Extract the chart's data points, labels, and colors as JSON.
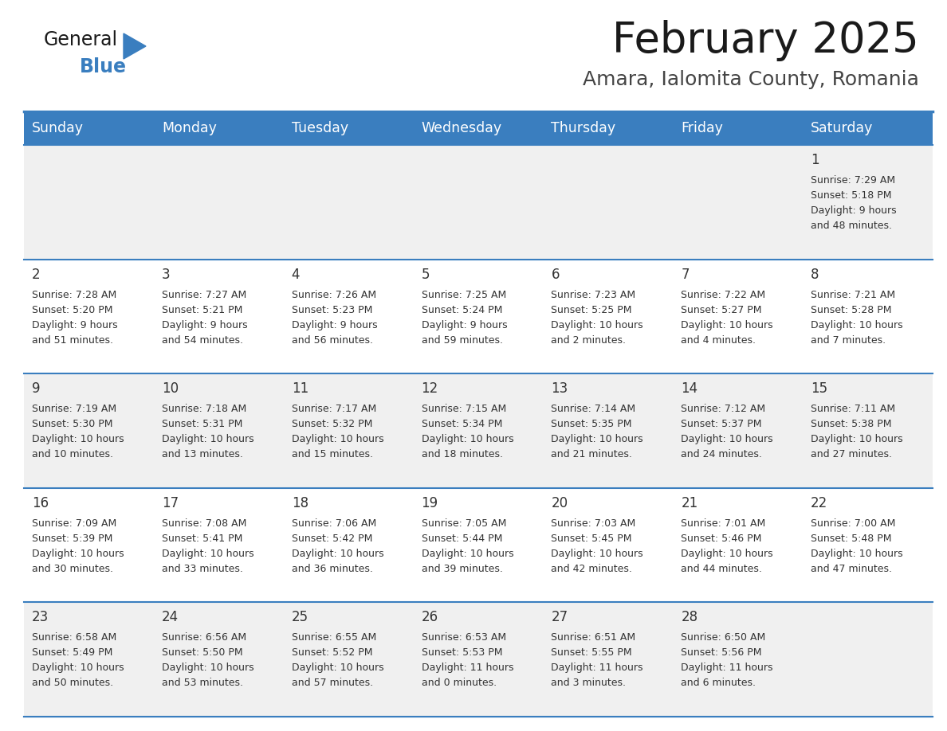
{
  "title": "February 2025",
  "subtitle": "Amara, Ialomita County, Romania",
  "days_of_week": [
    "Sunday",
    "Monday",
    "Tuesday",
    "Wednesday",
    "Thursday",
    "Friday",
    "Saturday"
  ],
  "header_bg": "#3a7ebf",
  "header_text": "#ffffff",
  "cell_bg_light": "#f0f0f0",
  "cell_bg_white": "#ffffff",
  "cell_border": "#3a7ebf",
  "day_number_color": "#333333",
  "info_text_color": "#333333",
  "title_color": "#1a1a1a",
  "subtitle_color": "#444444",
  "logo_general_color": "#1a1a1a",
  "logo_blue_color": "#3a7ebf",
  "calendar_data": [
    [
      null,
      null,
      null,
      null,
      null,
      null,
      {
        "day": 1,
        "sunrise": "7:29 AM",
        "sunset": "5:18 PM",
        "daylight": "9 hours and 48 minutes."
      }
    ],
    [
      {
        "day": 2,
        "sunrise": "7:28 AM",
        "sunset": "5:20 PM",
        "daylight": "9 hours and 51 minutes."
      },
      {
        "day": 3,
        "sunrise": "7:27 AM",
        "sunset": "5:21 PM",
        "daylight": "9 hours and 54 minutes."
      },
      {
        "day": 4,
        "sunrise": "7:26 AM",
        "sunset": "5:23 PM",
        "daylight": "9 hours and 56 minutes."
      },
      {
        "day": 5,
        "sunrise": "7:25 AM",
        "sunset": "5:24 PM",
        "daylight": "9 hours and 59 minutes."
      },
      {
        "day": 6,
        "sunrise": "7:23 AM",
        "sunset": "5:25 PM",
        "daylight": "10 hours and 2 minutes."
      },
      {
        "day": 7,
        "sunrise": "7:22 AM",
        "sunset": "5:27 PM",
        "daylight": "10 hours and 4 minutes."
      },
      {
        "day": 8,
        "sunrise": "7:21 AM",
        "sunset": "5:28 PM",
        "daylight": "10 hours and 7 minutes."
      }
    ],
    [
      {
        "day": 9,
        "sunrise": "7:19 AM",
        "sunset": "5:30 PM",
        "daylight": "10 hours and 10 minutes."
      },
      {
        "day": 10,
        "sunrise": "7:18 AM",
        "sunset": "5:31 PM",
        "daylight": "10 hours and 13 minutes."
      },
      {
        "day": 11,
        "sunrise": "7:17 AM",
        "sunset": "5:32 PM",
        "daylight": "10 hours and 15 minutes."
      },
      {
        "day": 12,
        "sunrise": "7:15 AM",
        "sunset": "5:34 PM",
        "daylight": "10 hours and 18 minutes."
      },
      {
        "day": 13,
        "sunrise": "7:14 AM",
        "sunset": "5:35 PM",
        "daylight": "10 hours and 21 minutes."
      },
      {
        "day": 14,
        "sunrise": "7:12 AM",
        "sunset": "5:37 PM",
        "daylight": "10 hours and 24 minutes."
      },
      {
        "day": 15,
        "sunrise": "7:11 AM",
        "sunset": "5:38 PM",
        "daylight": "10 hours and 27 minutes."
      }
    ],
    [
      {
        "day": 16,
        "sunrise": "7:09 AM",
        "sunset": "5:39 PM",
        "daylight": "10 hours and 30 minutes."
      },
      {
        "day": 17,
        "sunrise": "7:08 AM",
        "sunset": "5:41 PM",
        "daylight": "10 hours and 33 minutes."
      },
      {
        "day": 18,
        "sunrise": "7:06 AM",
        "sunset": "5:42 PM",
        "daylight": "10 hours and 36 minutes."
      },
      {
        "day": 19,
        "sunrise": "7:05 AM",
        "sunset": "5:44 PM",
        "daylight": "10 hours and 39 minutes."
      },
      {
        "day": 20,
        "sunrise": "7:03 AM",
        "sunset": "5:45 PM",
        "daylight": "10 hours and 42 minutes."
      },
      {
        "day": 21,
        "sunrise": "7:01 AM",
        "sunset": "5:46 PM",
        "daylight": "10 hours and 44 minutes."
      },
      {
        "day": 22,
        "sunrise": "7:00 AM",
        "sunset": "5:48 PM",
        "daylight": "10 hours and 47 minutes."
      }
    ],
    [
      {
        "day": 23,
        "sunrise": "6:58 AM",
        "sunset": "5:49 PM",
        "daylight": "10 hours and 50 minutes."
      },
      {
        "day": 24,
        "sunrise": "6:56 AM",
        "sunset": "5:50 PM",
        "daylight": "10 hours and 53 minutes."
      },
      {
        "day": 25,
        "sunrise": "6:55 AM",
        "sunset": "5:52 PM",
        "daylight": "10 hours and 57 minutes."
      },
      {
        "day": 26,
        "sunrise": "6:53 AM",
        "sunset": "5:53 PM",
        "daylight": "11 hours and 0 minutes."
      },
      {
        "day": 27,
        "sunrise": "6:51 AM",
        "sunset": "5:55 PM",
        "daylight": "11 hours and 3 minutes."
      },
      {
        "day": 28,
        "sunrise": "6:50 AM",
        "sunset": "5:56 PM",
        "daylight": "11 hours and 6 minutes."
      },
      null
    ]
  ]
}
